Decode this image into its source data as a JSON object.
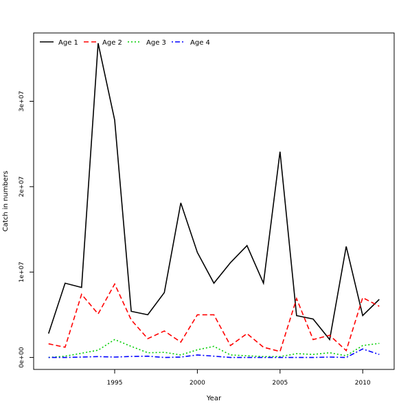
{
  "chart_data": {
    "type": "line",
    "title": "",
    "xlabel": "Year",
    "ylabel": "Catch in numbers",
    "xlim": [
      1990.1,
      2011.9
    ],
    "ylim": [
      -1400000,
      38000000
    ],
    "x_ticks": [
      1995,
      2000,
      2005,
      2010
    ],
    "x_tick_labels": [
      "1995",
      "2000",
      "2005",
      "2010"
    ],
    "y_ticks": [
      0,
      10000000,
      20000000,
      30000000
    ],
    "y_tick_labels": [
      "0e+00",
      "1e+07",
      "2e+07",
      "3e+07"
    ],
    "grid": false,
    "legend_position": "top-left",
    "x": [
      1991,
      1992,
      1993,
      1994,
      1995,
      1996,
      1997,
      1998,
      1999,
      2000,
      2001,
      2002,
      2003,
      2004,
      2005,
      2006,
      2007,
      2008,
      2009,
      2010,
      2011
    ],
    "series": [
      {
        "name": "Age 1",
        "color": "#000000",
        "dash": "solid",
        "values": [
          2800000,
          8700000,
          8200000,
          36800000,
          27800000,
          5400000,
          5000000,
          7600000,
          18100000,
          12300000,
          8700000,
          11100000,
          13100000,
          8700000,
          24100000,
          4900000,
          4500000,
          2100000,
          13000000,
          4900000,
          6800000
        ]
      },
      {
        "name": "Age 2",
        "color": "#ff0000",
        "dash": "dashed",
        "values": [
          1600000,
          1200000,
          7400000,
          5100000,
          8600000,
          4400000,
          2200000,
          3100000,
          1800000,
          5000000,
          5000000,
          1400000,
          2800000,
          1200000,
          700000,
          6900000,
          2100000,
          2600000,
          800000,
          7000000,
          6000000
        ]
      },
      {
        "name": "Age 3",
        "color": "#00cd00",
        "dash": "dotted",
        "values": [
          0,
          150000,
          500000,
          850000,
          2100000,
          1300000,
          550000,
          600000,
          300000,
          900000,
          1300000,
          300000,
          200000,
          100000,
          100000,
          450000,
          350000,
          550000,
          200000,
          1400000,
          1650000
        ]
      },
      {
        "name": "Age 4",
        "color": "#0000ff",
        "dash": "dotdash",
        "values": [
          0,
          0,
          50000,
          100000,
          50000,
          120000,
          150000,
          0,
          50000,
          300000,
          150000,
          0,
          0,
          0,
          0,
          0,
          0,
          50000,
          0,
          1000000,
          350000
        ]
      }
    ]
  }
}
